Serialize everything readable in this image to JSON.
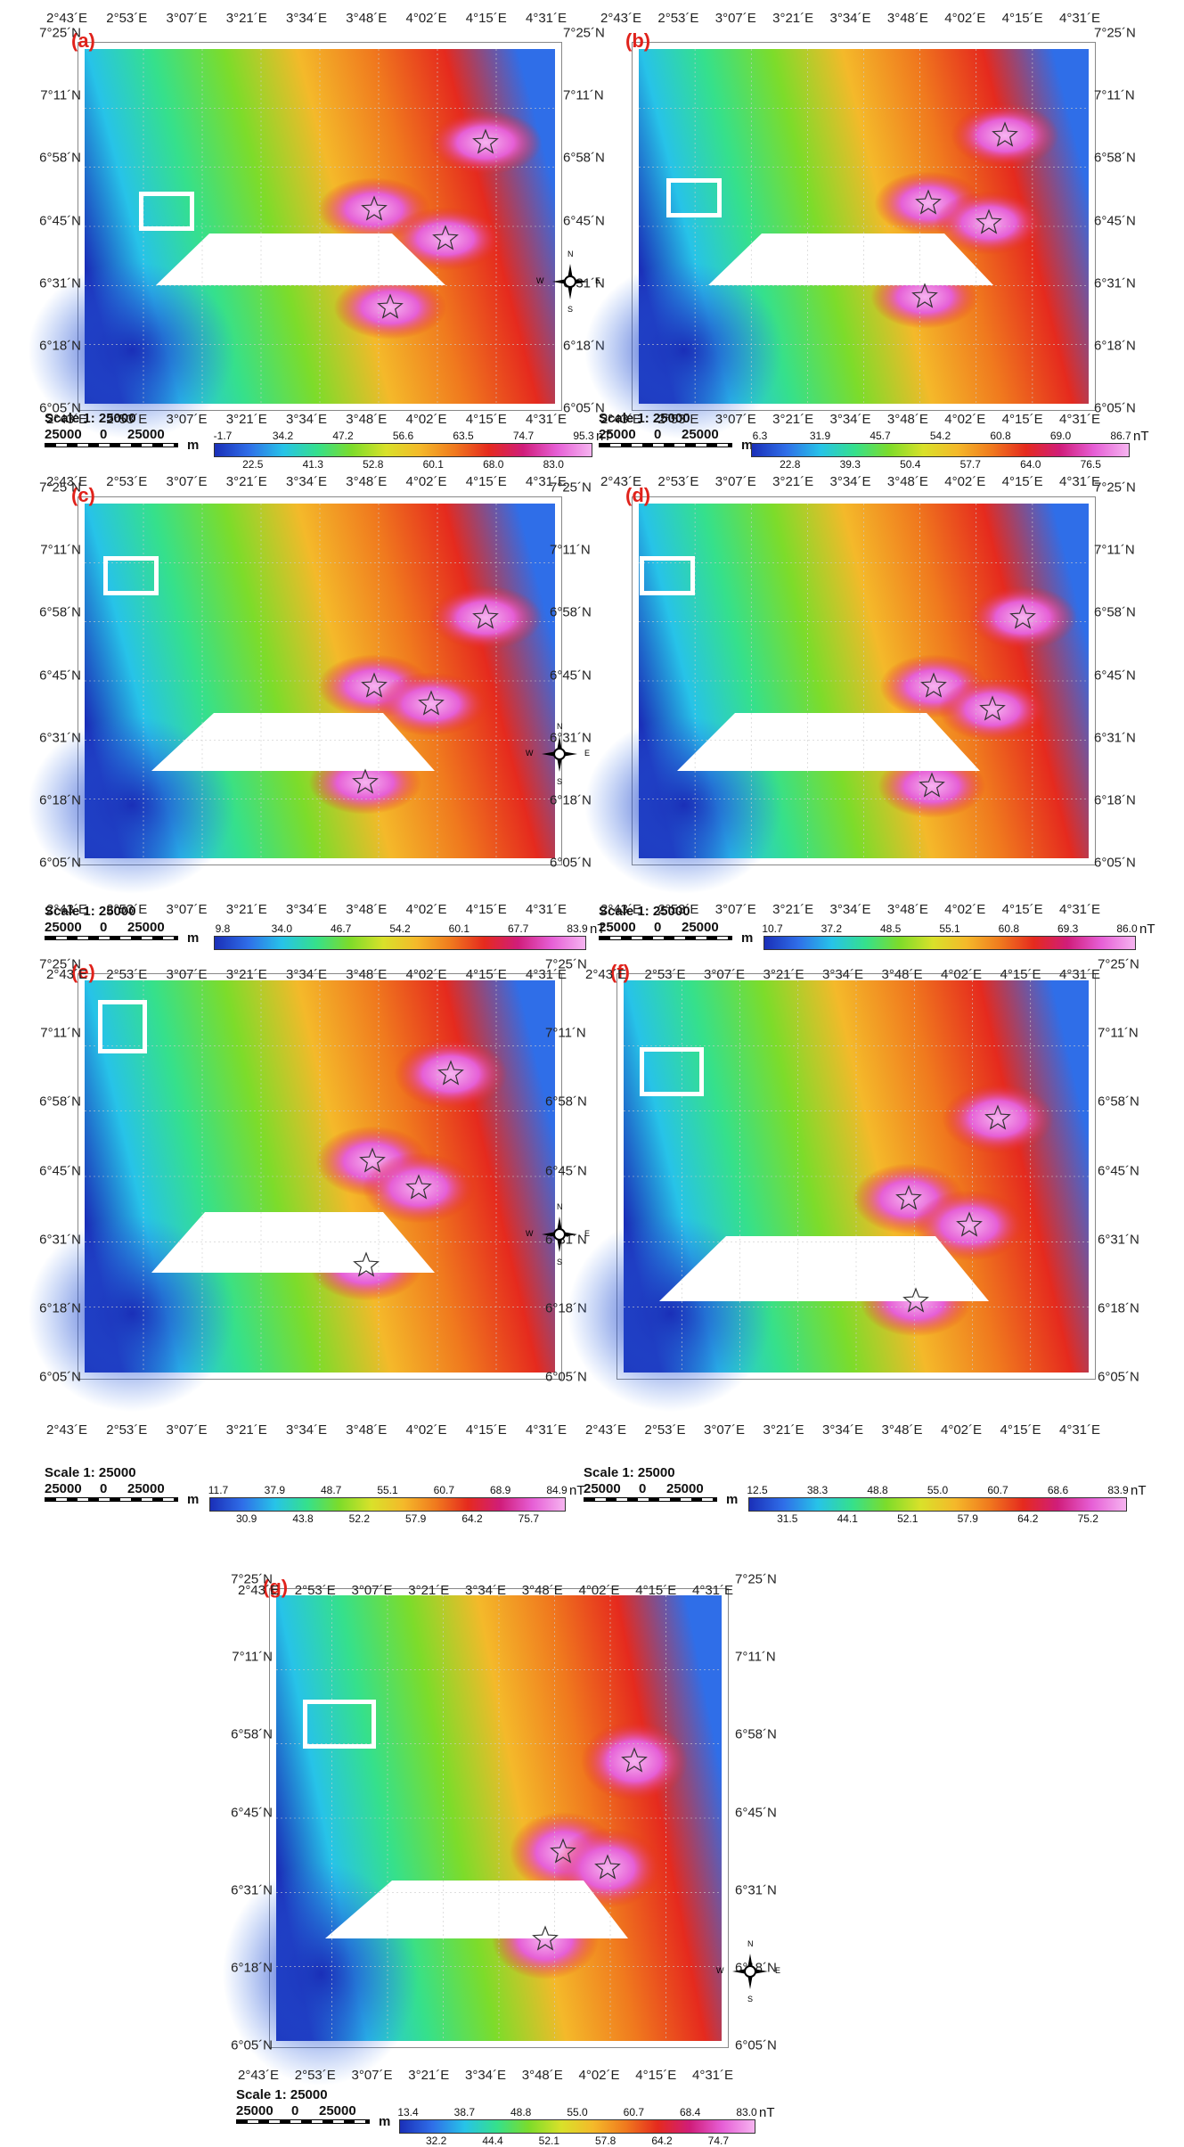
{
  "panels": [
    {
      "letter": "(a)",
      "top_ticks": [
        "2°43´E",
        "2°53´E",
        "3°07´E",
        "3°21´E",
        "3°34´E",
        "3°48´E",
        "4°02´E",
        "4°15´E",
        "4°31´E"
      ],
      "bottom_ticks": [
        "2°43´E",
        "2°53´E",
        "3°07´E",
        "3°21´E",
        "3°34´E",
        "3°48´E",
        "4°02´E",
        "4°15´E",
        "4°31´E"
      ],
      "left_ticks": [
        "7°25´N",
        "7°11´N",
        "6°58´N",
        "6°45´N",
        "6°31´N",
        "6°18´N",
        "6°05´N"
      ],
      "right_ticks": [
        "7°25´N",
        "7°11´N",
        "6°58´N",
        "6°45´N",
        "6°31´N",
        "6°18´N",
        "6°05´N"
      ],
      "scale_title": "Scale 1: 25000",
      "scale_left": "25000",
      "scale_mid": "0",
      "scale_right": "25000",
      "scale_unit": "m",
      "cb_top": [
        "-1.7",
        "34.2",
        "47.2",
        "56.6",
        "63.5",
        "74.7",
        "95.3"
      ],
      "cb_bottom": [
        "22.5",
        "41.3",
        "52.8",
        "60.1",
        "68.0",
        "83.0"
      ],
      "cb_unit": "nT",
      "compass": {
        "n": "N",
        "s": "S",
        "w": "W",
        "e": "E"
      }
    },
    {
      "letter": "(b)",
      "top_ticks": [
        "2°43´E",
        "2°53´E",
        "3°07´E",
        "3°21´E",
        "3°34´E",
        "3°48´E",
        "4°02´E",
        "4°15´E",
        "4°31´E"
      ],
      "bottom_ticks": [
        "2°43´E",
        "2°53´E",
        "3°07´E",
        "3°21´E",
        "3°34´E",
        "3°48´E",
        "4°02´E",
        "4°15´E",
        "4°31´E"
      ],
      "left_ticks": [],
      "right_ticks": [
        "7°25´N",
        "7°11´N",
        "6°58´N",
        "6°45´N",
        "6°31´N",
        "6°18´N",
        "6°05´N"
      ],
      "scale_title": "Scale 1: 25000",
      "scale_left": "25000",
      "scale_mid": "0",
      "scale_right": "25000",
      "scale_unit": "m",
      "cb_top": [
        "6.3",
        "31.9",
        "45.7",
        "54.2",
        "60.8",
        "69.0",
        "86.7"
      ],
      "cb_bottom": [
        "22.8",
        "39.3",
        "50.4",
        "57.7",
        "64.0",
        "76.5"
      ],
      "cb_unit": "nT"
    },
    {
      "letter": "(c)",
      "top_ticks": [
        "2°43´E",
        "2°53´E",
        "3°07´E",
        "3°21´E",
        "3°34´E",
        "3°48´E",
        "4°02´E",
        "4°15´E",
        "4°31´E"
      ],
      "bottom_ticks": [
        "2°43´E",
        "2°53´E",
        "3°07´E",
        "3°21´E",
        "3°34´E",
        "3°48´E",
        "4°02´E",
        "4°15´E",
        "4°31´E"
      ],
      "left_ticks": [
        "7°25´N",
        "7°11´N",
        "6°58´N",
        "6°45´N",
        "6°31´N",
        "6°18´N",
        "6°05´N"
      ],
      "right_ticks": [
        "7°25´N",
        "7°11´N",
        "6°58´N",
        "6°45´N",
        "6°31´N",
        "6°18´N",
        "6°05´N"
      ],
      "scale_title": "Scale 1: 25000",
      "scale_left": "25000",
      "scale_mid": "0",
      "scale_right": "25000",
      "scale_unit": "m",
      "cb_top": [
        "9.8",
        "34.0",
        "46.7",
        "54.2",
        "60.1",
        "67.7",
        "83.9"
      ],
      "cb_bottom": [],
      "cb_unit": "nT",
      "compass": {
        "n": "N",
        "s": "S",
        "w": "W",
        "e": "E"
      }
    },
    {
      "letter": "(d)",
      "top_ticks": [
        "2°43´E",
        "2°53´E",
        "3°07´E",
        "3°21´E",
        "3°34´E",
        "3°48´E",
        "4°02´E",
        "4°15´E",
        "4°31´E"
      ],
      "bottom_ticks": [
        "2°43´E",
        "2°53´E",
        "3°07´E",
        "3°21´E",
        "3°34´E",
        "3°48´E",
        "4°02´E",
        "4°15´E",
        "4°31´E"
      ],
      "left_ticks": [],
      "right_ticks": [
        "7°25´N",
        "7°11´N",
        "6°58´N",
        "6°45´N",
        "6°31´N",
        "6°18´N",
        "6°05´N"
      ],
      "scale_title": "Scale  1: 25000",
      "scale_left": "25000",
      "scale_mid": "0",
      "scale_right": "25000",
      "scale_unit": "m",
      "cb_top": [
        "10.7",
        "37.2",
        "48.5",
        "55.1",
        "60.8",
        "69.3",
        "86.0"
      ],
      "cb_bottom": [],
      "cb_unit": "nT"
    },
    {
      "letter": "(e)",
      "top_ticks": [
        "2°43´E",
        "2°53´E",
        "3°07´E",
        "3°21´E",
        "3°34´E",
        "3°48´E",
        "4°02´E",
        "4°15´E",
        "4°31´E"
      ],
      "bottom_ticks": [
        "2°43´E",
        "2°53´E",
        "3°07´E",
        "3°21´E",
        "3°34´E",
        "3°48´E",
        "4°02´E",
        "4°15´E",
        "4°31´E"
      ],
      "left_ticks": [
        "7°25´N",
        "7°11´N",
        "6°58´N",
        "6°45´N",
        "6°31´N",
        "6°18´N",
        "6°05´N"
      ],
      "right_ticks": [
        "7°25´N",
        "7°11´N",
        "6°58´N",
        "6°45´N",
        "6°31´N",
        "6°18´N",
        "6°05´N"
      ],
      "scale_title": "Scale   1: 25000",
      "scale_left": "25000",
      "scale_mid": "0",
      "scale_right": "25000",
      "scale_unit": "m",
      "cb_top": [
        "11.7",
        "37.9",
        "48.7",
        "55.1",
        "60.7",
        "68.9",
        "84.9"
      ],
      "cb_bottom": [
        "30.9",
        "43.8",
        "52.2",
        "57.9",
        "64.2",
        "75.7"
      ],
      "cb_unit": "nT",
      "compass": {
        "n": "N",
        "s": "S",
        "w": "W",
        "e": "E"
      }
    },
    {
      "letter": "(f)",
      "top_ticks": [
        "2°43´E",
        "2°53´E",
        "3°07´E",
        "3°21´E",
        "3°34´E",
        "3°48´E",
        "4°02´E",
        "4°15´E",
        "4°31´E"
      ],
      "bottom_ticks": [
        "2°43´E",
        "2°53´E",
        "3°07´E",
        "3°21´E",
        "3°34´E",
        "3°48´E",
        "4°02´E",
        "4°15´E",
        "4°31´E"
      ],
      "left_ticks": [],
      "right_ticks": [
        "7°25´N",
        "7°11´N",
        "6°58´N",
        "6°45´N",
        "6°31´N",
        "6°18´N",
        "6°05´N"
      ],
      "scale_title": "Scale  1: 25000",
      "scale_left": "25000",
      "scale_mid": "0",
      "scale_right": "25000",
      "scale_unit": "m",
      "cb_top": [
        "12.5",
        "38.3",
        "48.8",
        "55.0",
        "60.7",
        "68.6",
        "83.9"
      ],
      "cb_bottom": [
        "31.5",
        "44.1",
        "52.1",
        "57.9",
        "64.2",
        "75.2"
      ],
      "cb_unit": "nT"
    },
    {
      "letter": "(g)",
      "top_ticks": [
        "2°43´E",
        "2°53´E",
        "3°07´E",
        "3°21´E",
        "3°34´E",
        "3°48´E",
        "4°02´E",
        "4°15´E",
        "4°31´E"
      ],
      "bottom_ticks": [
        "2°43´E",
        "2°53´E",
        "3°07´E",
        "3°21´E",
        "3°34´E",
        "3°48´E",
        "4°02´E",
        "4°15´E",
        "4°31´E"
      ],
      "left_ticks": [
        "7°25´N",
        "7°11´N",
        "6°58´N",
        "6°45´N",
        "6°31´N",
        "6°18´N",
        "6°05´N"
      ],
      "right_ticks": [
        "7°25´N",
        "7°11´N",
        "6°58´N",
        "6°45´N",
        "6°31´N",
        "6°18´N",
        "6°05´N"
      ],
      "scale_title": "Scale 1: 25000",
      "scale_left": "25000",
      "scale_mid": "0",
      "scale_right": "25000",
      "scale_unit": "m",
      "cb_top": [
        "13.4",
        "38.7",
        "48.8",
        "55.0",
        "60.7",
        "68.4",
        "83.0"
      ],
      "cb_bottom": [
        "32.2",
        "44.4",
        "52.1",
        "57.8",
        "64.2",
        "74.7"
      ],
      "cb_unit": "nT",
      "compass": {
        "n": "N",
        "s": "S",
        "w": "W",
        "e": "E"
      }
    }
  ],
  "colors": {
    "ramp": [
      "#1a2fb8",
      "#2f6ee8",
      "#27c3e8",
      "#35e08c",
      "#7ddc2a",
      "#d9e12a",
      "#f4b92a",
      "#f07a1e",
      "#e52a1e",
      "#d01d7a",
      "#e65fd6",
      "#f6b4f0"
    ],
    "highlight": "#ffffff",
    "panel_letter": "#e0221b"
  }
}
